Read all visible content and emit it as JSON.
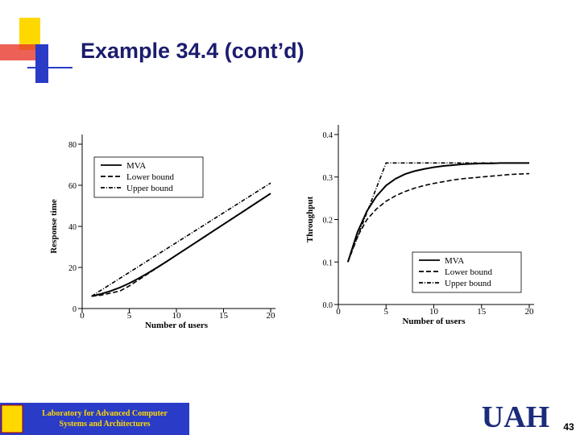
{
  "slide": {
    "title": "Example 34.4 (cont’d)",
    "lab_lines": [
      "Laboratory for Advanced Computer",
      "Systems and Architectures"
    ],
    "logo": "UAH",
    "page_number": "43"
  },
  "chart_data": [
    {
      "type": "line",
      "x_label": "Number of users",
      "y_label": "Response time",
      "x": [
        1,
        2,
        3,
        4,
        5,
        6,
        7,
        8,
        9,
        10,
        11,
        12,
        13,
        14,
        15,
        16,
        17,
        18,
        19,
        20
      ],
      "xlim": [
        0,
        20
      ],
      "xticks": [
        0,
        5,
        10,
        15,
        20
      ],
      "ylim": [
        0,
        80
      ],
      "yticks": [
        0,
        20,
        40,
        60,
        80
      ],
      "legend": "upper left",
      "series": [
        {
          "name": "MVA",
          "color": "#000000",
          "dash": "solid",
          "values": [
            6,
            7.1,
            8.5,
            10.2,
            12.3,
            14.7,
            17.3,
            20.1,
            23,
            26,
            29,
            32,
            35,
            38,
            41,
            44,
            47,
            50,
            53,
            56
          ]
        },
        {
          "name": "Lower bound",
          "color": "#000000",
          "dash": "dashed",
          "values": [
            6,
            6.5,
            7.5,
            8.5,
            11,
            14,
            17,
            20,
            23,
            26,
            29,
            32,
            35,
            38,
            41,
            44,
            47,
            50,
            53,
            56
          ]
        },
        {
          "name": "Upper bound",
          "color": "#000000",
          "dash": "dashdot",
          "values": [
            6,
            8.9,
            11.8,
            14.7,
            17.6,
            20.5,
            23.4,
            26.3,
            29.2,
            32.1,
            35,
            37.9,
            40.8,
            43.7,
            46.6,
            49.5,
            52.4,
            55.3,
            58.2,
            61.1
          ]
        }
      ]
    },
    {
      "type": "line",
      "x_label": "Number of users",
      "y_label": "Throughput",
      "x": [
        1,
        2,
        3,
        4,
        5,
        6,
        7,
        8,
        9,
        10,
        11,
        12,
        13,
        14,
        15,
        16,
        17,
        18,
        19,
        20
      ],
      "xlim": [
        0,
        20
      ],
      "xticks": [
        0,
        5,
        10,
        15,
        20
      ],
      "ylim": [
        0,
        0.4
      ],
      "yticks": [
        {
          "value": 0,
          "label": "0.0"
        },
        0.1,
        0.2,
        0.3,
        0.4
      ],
      "legend": "lower right",
      "series": [
        {
          "name": "MVA",
          "color": "#000000",
          "dash": "solid",
          "values": [
            0.1,
            0.17,
            0.22,
            0.255,
            0.28,
            0.296,
            0.307,
            0.314,
            0.319,
            0.323,
            0.326,
            0.328,
            0.33,
            0.331,
            0.332,
            0.332,
            0.333,
            0.333,
            0.333,
            0.333
          ]
        },
        {
          "name": "Lower bound",
          "color": "#000000",
          "dash": "dashed",
          "values": [
            0.1,
            0.16,
            0.2,
            0.225,
            0.243,
            0.256,
            0.266,
            0.274,
            0.28,
            0.285,
            0.289,
            0.293,
            0.296,
            0.298,
            0.3,
            0.302,
            0.304,
            0.306,
            0.307,
            0.308
          ]
        },
        {
          "name": "Upper bound",
          "color": "#000000",
          "dash": "dashdot",
          "values": [
            0.1,
            0.158,
            0.217,
            0.275,
            0.333,
            0.333,
            0.333,
            0.333,
            0.333,
            0.333,
            0.333,
            0.333,
            0.333,
            0.333,
            0.333,
            0.333,
            0.333,
            0.333,
            0.333,
            0.333
          ]
        }
      ]
    }
  ]
}
